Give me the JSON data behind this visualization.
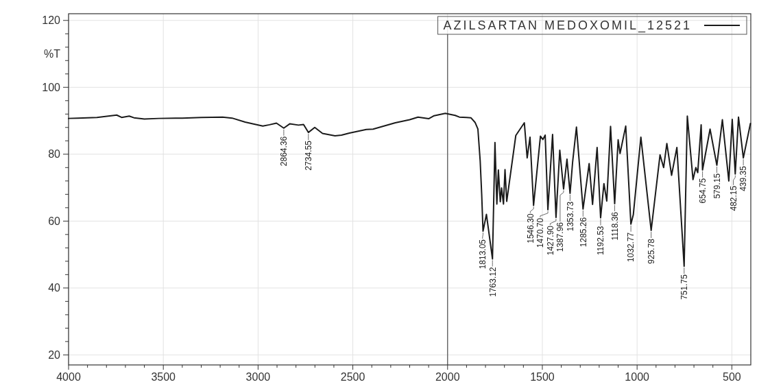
{
  "chart_data": {
    "type": "line",
    "ylabel": "%T",
    "xlim": [
      4000,
      400
    ],
    "ylim": [
      17,
      122
    ],
    "xticks": [
      4000,
      {
        "value": 3900,
        "label": null
      },
      {
        "value": 3800,
        "label": null
      },
      {
        "value": 3700,
        "label": null
      },
      {
        "value": 3600,
        "label": null
      },
      3500,
      {
        "value": 3400,
        "label": null
      },
      {
        "value": 3300,
        "label": null
      },
      {
        "value": 3200,
        "label": null
      },
      {
        "value": 3100,
        "label": null
      },
      3000,
      {
        "value": 2900,
        "label": null
      },
      {
        "value": 2800,
        "label": null
      },
      {
        "value": 2700,
        "label": null
      },
      {
        "value": 2600,
        "label": null
      },
      2500,
      {
        "value": 2400,
        "label": null
      },
      {
        "value": 2300,
        "label": null
      },
      {
        "value": 2200,
        "label": null
      },
      {
        "value": 2100,
        "label": null
      },
      2000,
      {
        "value": 1900,
        "label": null
      },
      {
        "value": 1800,
        "label": null
      },
      {
        "value": 1700,
        "label": null
      },
      {
        "value": 1600,
        "label": null
      },
      1500,
      {
        "value": 1400,
        "label": null
      },
      {
        "value": 1300,
        "label": null
      },
      {
        "value": 1200,
        "label": null
      },
      {
        "value": 1100,
        "label": null
      },
      1000,
      {
        "value": 900,
        "label": null
      },
      {
        "value": 800,
        "label": null
      },
      {
        "value": 700,
        "label": null
      },
      {
        "value": 600,
        "label": null
      },
      500
    ],
    "yticks": [
      20,
      {
        "value": 24,
        "label": null
      },
      {
        "value": 28,
        "label": null
      },
      {
        "value": 32,
        "label": null
      },
      {
        "value": 36,
        "label": null
      },
      40,
      {
        "value": 44,
        "label": null
      },
      {
        "value": 48,
        "label": null
      },
      {
        "value": 52,
        "label": null
      },
      {
        "value": 56,
        "label": null
      },
      60,
      {
        "value": 64,
        "label": null
      },
      {
        "value": 68,
        "label": null
      },
      {
        "value": 72,
        "label": null
      },
      {
        "value": 76,
        "label": null
      },
      80,
      {
        "value": 84,
        "label": null
      },
      {
        "value": 88,
        "label": null
      },
      {
        "value": 92,
        "label": null
      },
      {
        "value": 96,
        "label": null
      },
      100,
      {
        "value": 104,
        "label": null
      },
      {
        "value": 108,
        "label": null
      },
      {
        "value": 112,
        "label": null
      },
      {
        "value": 116,
        "label": null
      },
      120
    ],
    "grid": true,
    "legend": "top right",
    "ref_lines": [
      {
        "axis": "x",
        "value": 2000,
        "color": "#4d4d4d"
      }
    ],
    "x": [
      4000,
      3950,
      3850,
      3746,
      3720,
      3680,
      3655,
      3600,
      3523,
      3400,
      3300,
      3187,
      3137,
      3068,
      3020,
      2975,
      2940,
      2903,
      2864.36,
      2832,
      2787,
      2760,
      2734.55,
      2701,
      2660,
      2594,
      2560,
      2518,
      2429,
      2393,
      2276,
      2200,
      2156,
      2100,
      2071,
      2012,
      1960,
      1938,
      1900,
      1877,
      1855,
      1840,
      1828,
      1820,
      1813.05,
      1795,
      1763.12,
      1750,
      1740,
      1732,
      1722,
      1715,
      1705,
      1697,
      1688,
      1640,
      1595,
      1580,
      1565,
      1546.3,
      1510,
      1497,
      1485,
      1470.7,
      1446,
      1427.9,
      1408,
      1387.96,
      1370,
      1353.73,
      1340,
      1320,
      1285.26,
      1253,
      1235,
      1211,
      1192.53,
      1175,
      1160,
      1140,
      1118.36,
      1100,
      1090,
      1060,
      1032.77,
      1020,
      980,
      925.78,
      879,
      860,
      843,
      818,
      790,
      751.75,
      735,
      705,
      690,
      680,
      662,
      654.75,
      615,
      579.15,
      550,
      516,
      498,
      482.15,
      465,
      439.35,
      402
    ],
    "series": [
      {
        "name": "AZILSARTAN MEDOXOMIL_12521",
        "color": "#1a1a1a",
        "values": [
          90.7,
          90.8,
          91.0,
          91.7,
          91.0,
          91.4,
          90.9,
          90.5,
          90.7,
          90.8,
          91.0,
          91.1,
          90.8,
          89.6,
          89.0,
          88.4,
          88.8,
          89.3,
          87.8,
          89.1,
          88.7,
          88.9,
          86.5,
          88.0,
          86.2,
          85.5,
          85.7,
          86.3,
          87.4,
          87.5,
          89.4,
          90.3,
          91.1,
          90.6,
          91.5,
          92.2,
          91.6,
          91.1,
          91.0,
          90.9,
          89.5,
          87.5,
          78,
          68,
          57.0,
          62,
          48.7,
          83.5,
          65.1,
          75.3,
          65.8,
          69.9,
          65.1,
          75.4,
          65.9,
          85.6,
          89.4,
          78.9,
          85.1,
          64.7,
          85.4,
          84.4,
          85.7,
          63.4,
          85.9,
          61.1,
          81.2,
          69.6,
          78.5,
          68.3,
          77.8,
          88.1,
          63.6,
          77.2,
          65.0,
          82.0,
          61.0,
          71.2,
          66.0,
          88.3,
          65.2,
          84.3,
          80.2,
          88.4,
          59.1,
          61.9,
          85.1,
          57.2,
          79.8,
          76.0,
          83.2,
          73.7,
          82.0,
          46.5,
          91.4,
          72.4,
          76.0,
          74.5,
          88.8,
          75.3,
          87.5,
          76.7,
          90.3,
          72.0,
          90.4,
          74.1,
          91.1,
          78.9,
          89.2
        ]
      }
    ],
    "annotations": [
      {
        "text": "2864.36",
        "x": 2864.36,
        "y": 87.8
      },
      {
        "text": "2734.55",
        "x": 2734.55,
        "y": 86.5
      },
      {
        "text": "1813.05",
        "x": 1813.05,
        "y": 57.0
      },
      {
        "text": "1763.12",
        "x": 1763.12,
        "y": 48.7
      },
      {
        "text": "1546.30",
        "x": 1546.3,
        "y": 64.7
      },
      {
        "text": "1470.70",
        "x": 1470.7,
        "y": 63.4
      },
      {
        "text": "1427.90",
        "x": 1427.9,
        "y": 61.1
      },
      {
        "text": "1387.96",
        "x": 1387.96,
        "y": 69.6
      },
      {
        "text": "1353.73",
        "x": 1353.73,
        "y": 68.3
      },
      {
        "text": "1285.26",
        "x": 1285.26,
        "y": 63.6
      },
      {
        "text": "1192.53",
        "x": 1192.53,
        "y": 61.0
      },
      {
        "text": "1118.36",
        "x": 1118.36,
        "y": 65.2
      },
      {
        "text": "1032.77",
        "x": 1032.77,
        "y": 59.1
      },
      {
        "text": "925.78",
        "x": 925.78,
        "y": 57.2
      },
      {
        "text": "751.75",
        "x": 751.75,
        "y": 46.5
      },
      {
        "text": "654.75",
        "x": 654.75,
        "y": 75.3
      },
      {
        "text": "579.15",
        "x": 579.15,
        "y": 76.7
      },
      {
        "text": "482.15",
        "x": 482.15,
        "y": 74.1
      },
      {
        "text": "439.35",
        "x": 439.35,
        "y": 78.9
      }
    ]
  }
}
